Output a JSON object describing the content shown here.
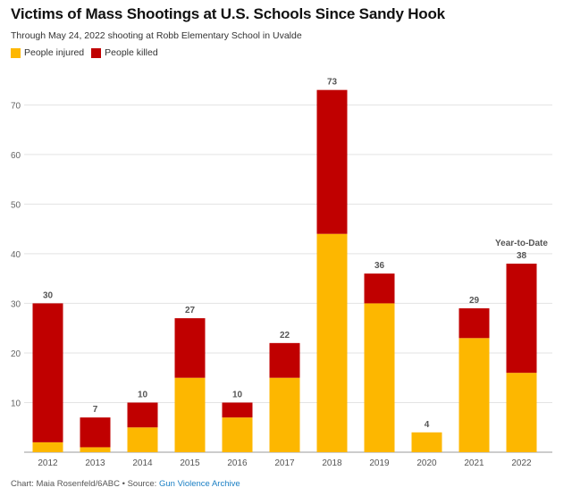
{
  "header": {
    "title": "Victims of Mass Shootings at U.S. Schools Since Sandy Hook",
    "subtitle": "Through May 24, 2022 shooting at Robb Elementary School in Uvalde"
  },
  "legend": {
    "injured_label": "People injured",
    "killed_label": "People killed"
  },
  "colors": {
    "injured": "#FDB700",
    "killed": "#C00000"
  },
  "chart_data": {
    "type": "bar",
    "stacked": true,
    "title": "Victims of Mass Shootings at U.S. Schools Since Sandy Hook",
    "categories": [
      "2012",
      "2013",
      "2014",
      "2015",
      "2016",
      "2017",
      "2018",
      "2019",
      "2020",
      "2021",
      "2022"
    ],
    "series": [
      {
        "name": "People injured",
        "values": [
          2,
          1,
          5,
          15,
          7,
          15,
          44,
          30,
          4,
          23,
          16
        ]
      },
      {
        "name": "People killed",
        "values": [
          28,
          6,
          5,
          12,
          3,
          7,
          29,
          6,
          0,
          6,
          22
        ]
      }
    ],
    "totals": [
      30,
      7,
      10,
      27,
      10,
      22,
      73,
      36,
      4,
      29,
      38
    ],
    "annotations": [
      {
        "category": "2022",
        "text": "Year-to-Date"
      }
    ],
    "yticks": [
      10,
      20,
      30,
      40,
      50,
      60,
      70
    ],
    "ylim": [
      0,
      76
    ],
    "grid": true,
    "legend": "top-left"
  },
  "footer": {
    "credit": "Chart: Maia Rosenfeld/6ABC • Source: ",
    "source": "Gun Violence Archive"
  }
}
